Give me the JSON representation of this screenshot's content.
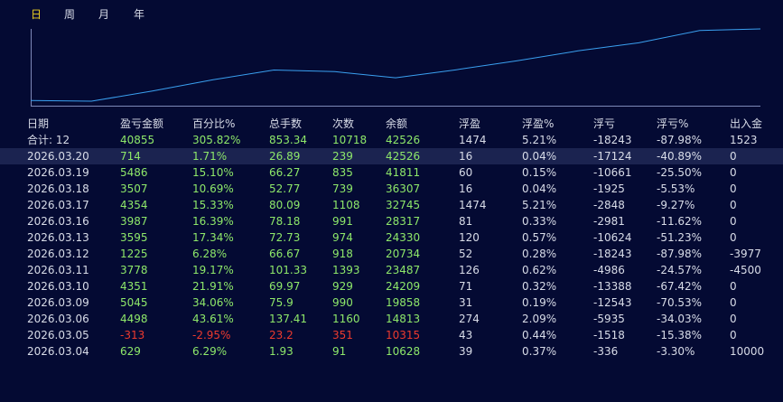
{
  "tabs": [
    {
      "label": "日",
      "active": true
    },
    {
      "label": "周",
      "active": false
    },
    {
      "label": "月",
      "active": false
    },
    {
      "label": "年",
      "active": false
    }
  ],
  "chart_data": {
    "type": "line",
    "series": [
      {
        "name": "余额",
        "values": [
          10628,
          10315,
          14813,
          19858,
          24209,
          23487,
          20734,
          24330,
          28317,
          32745,
          36307,
          41811,
          42526
        ]
      }
    ],
    "x": [
      "2026.03.04",
      "2026.03.05",
      "2026.03.06",
      "2026.03.09",
      "2026.03.10",
      "2026.03.11",
      "2026.03.12",
      "2026.03.13",
      "2026.03.16",
      "2026.03.17",
      "2026.03.18",
      "2026.03.19",
      "2026.03.20"
    ],
    "ylim": [
      10315,
      42526
    ],
    "grid": false,
    "line_color": "#3aa0f0"
  },
  "table": {
    "headers": [
      "日期",
      "盈亏金额",
      "百分比%",
      "总手数",
      "次数",
      "余额",
      "浮盈",
      "浮盈%",
      "浮亏",
      "浮亏%",
      "出入金"
    ],
    "total": [
      "合计: 12",
      "40855",
      "305.82%",
      "853.34",
      "10718",
      "42526",
      "1474",
      "5.21%",
      "-18243",
      "-87.98%",
      "1523"
    ],
    "rows": [
      [
        "2026.03.20",
        "714",
        "1.71%",
        "26.89",
        "239",
        "42526",
        "16",
        "0.04%",
        "-17124",
        "-40.89%",
        "0"
      ],
      [
        "2026.03.19",
        "5486",
        "15.10%",
        "66.27",
        "835",
        "41811",
        "60",
        "0.15%",
        "-10661",
        "-25.50%",
        "0"
      ],
      [
        "2026.03.18",
        "3507",
        "10.69%",
        "52.77",
        "739",
        "36307",
        "16",
        "0.04%",
        "-1925",
        "-5.53%",
        "0"
      ],
      [
        "2026.03.17",
        "4354",
        "15.33%",
        "80.09",
        "1108",
        "32745",
        "1474",
        "5.21%",
        "-2848",
        "-9.27%",
        "0"
      ],
      [
        "2026.03.16",
        "3987",
        "16.39%",
        "78.18",
        "991",
        "28317",
        "81",
        "0.33%",
        "-2981",
        "-11.62%",
        "0"
      ],
      [
        "2026.03.13",
        "3595",
        "17.34%",
        "72.73",
        "974",
        "24330",
        "120",
        "0.57%",
        "-10624",
        "-51.23%",
        "0"
      ],
      [
        "2026.03.12",
        "1225",
        "6.28%",
        "66.67",
        "918",
        "20734",
        "52",
        "0.28%",
        "-18243",
        "-87.98%",
        "-3977"
      ],
      [
        "2026.03.11",
        "3778",
        "19.17%",
        "101.33",
        "1393",
        "23487",
        "126",
        "0.62%",
        "-4986",
        "-24.57%",
        "-4500"
      ],
      [
        "2026.03.10",
        "4351",
        "21.91%",
        "69.97",
        "929",
        "24209",
        "71",
        "0.32%",
        "-13388",
        "-67.42%",
        "0"
      ],
      [
        "2026.03.09",
        "5045",
        "34.06%",
        "75.9",
        "990",
        "19858",
        "31",
        "0.19%",
        "-12543",
        "-70.53%",
        "0"
      ],
      [
        "2026.03.06",
        "4498",
        "43.61%",
        "137.41",
        "1160",
        "14813",
        "274",
        "2.09%",
        "-5935",
        "-34.03%",
        "0"
      ],
      [
        "2026.03.05",
        "-313",
        "-2.95%",
        "23.2",
        "351",
        "10315",
        "43",
        "0.44%",
        "-1518",
        "-15.38%",
        "0"
      ],
      [
        "2026.03.04",
        "629",
        "6.29%",
        "1.93",
        "91",
        "10628",
        "39",
        "0.37%",
        "-336",
        "-3.30%",
        "10000"
      ]
    ]
  },
  "colors": {
    "up": "#8ee86a",
    "down": "#ec3a2e",
    "neutral": "#d8dce8",
    "active_tab": "#f0d020"
  }
}
